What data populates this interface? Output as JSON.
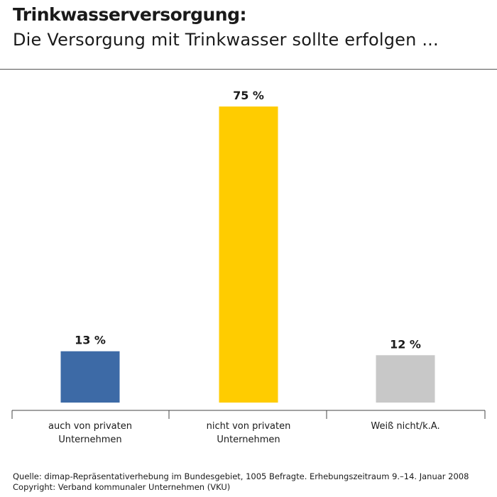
{
  "header": {
    "title": "Trinkwasserversorgung:",
    "subtitle": "Die Versorgung mit Trinkwasser sollte erfolgen ..."
  },
  "footer": {
    "source": "Quelle: dimap-Repräsentativerhebung im Bundesgebiet, 1005 Befragte. Erhebungszeitraum 9.–14. Januar 2008",
    "copyright": "Copyright: Verband kommunaler Unternehmen (VKU)"
  },
  "chart_data": {
    "type": "bar",
    "categories": [
      [
        "auch von privaten",
        "Unternehmen"
      ],
      [
        "nicht von privaten",
        "Unternehmen"
      ],
      [
        "Weiß nicht/k.A."
      ]
    ],
    "values": [
      13,
      75,
      12
    ],
    "value_labels": [
      "13 %",
      "75 %",
      "12 %"
    ],
    "colors": [
      "#3d6aa6",
      "#ffcc00",
      "#c8c8c8"
    ],
    "ylim": [
      0,
      75
    ],
    "grid": false,
    "legend": "none"
  }
}
